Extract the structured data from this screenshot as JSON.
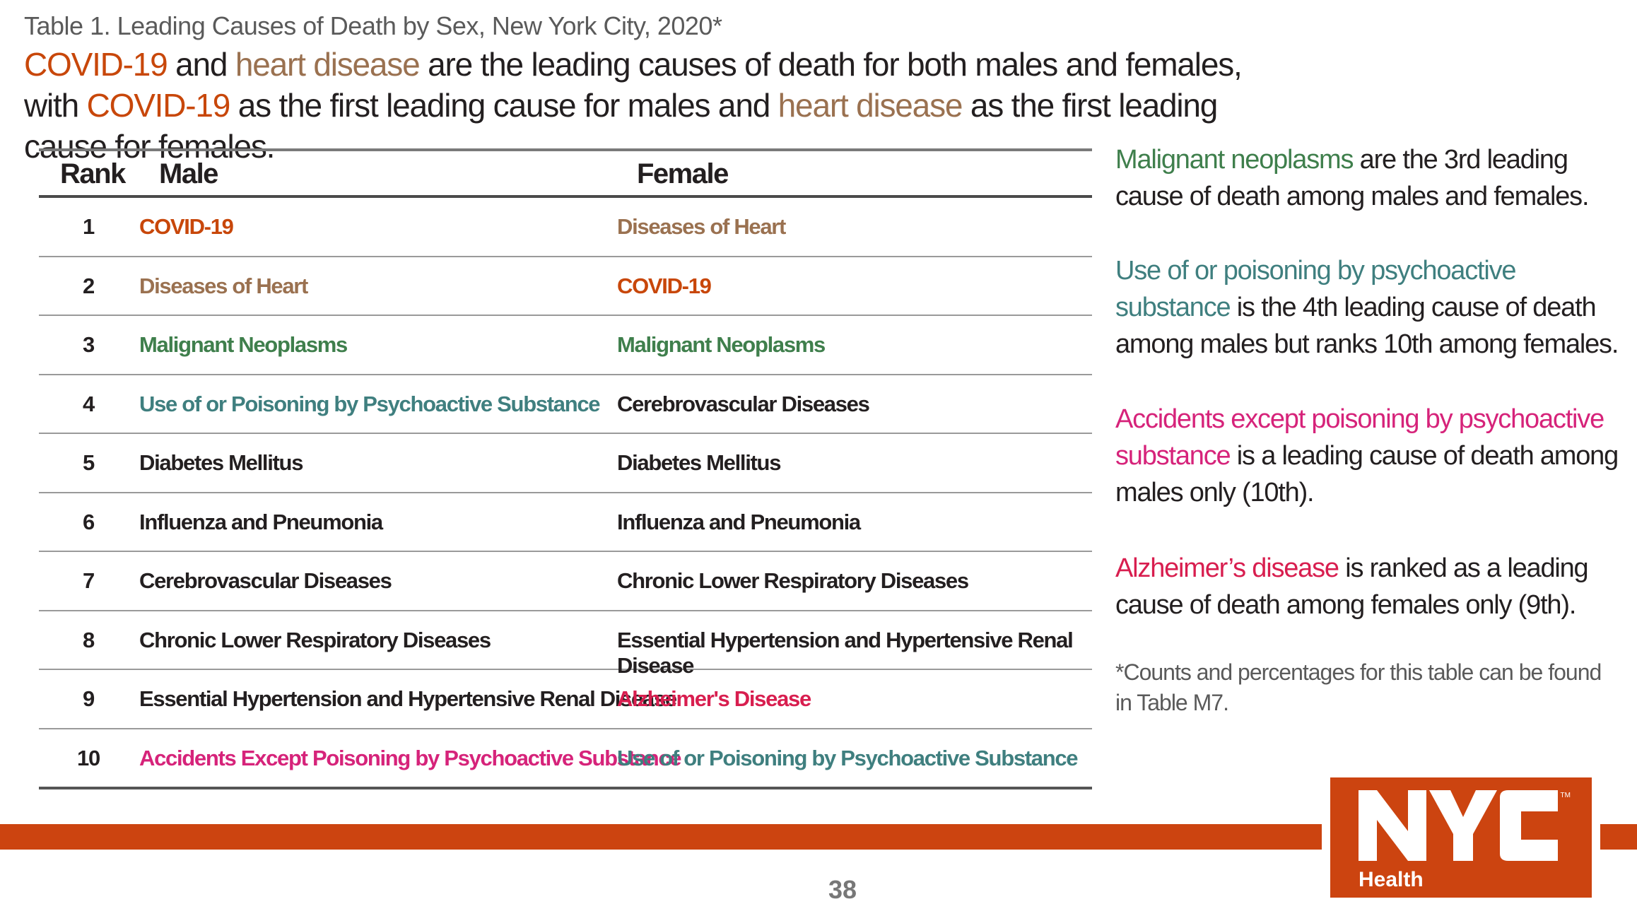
{
  "caption": "Table 1. Leading Causes of Death by Sex, New York City, 2020*",
  "headline": {
    "p1": "COVID-19",
    "p2": " and ",
    "p3": "heart disease",
    "p4": " are the leading causes of death for both males and females, with ",
    "p5": "COVID-19",
    "p6": " as the first leading cause for males and ",
    "p7": "heart disease",
    "p8": " as the first leading cause for females."
  },
  "table": {
    "headers": {
      "rank": "Rank",
      "male": "Male",
      "female": "Female"
    },
    "rows": [
      {
        "rank": "1",
        "male": "COVID-19",
        "female": "Diseases of Heart"
      },
      {
        "rank": "2",
        "male": "Diseases of Heart",
        "female": "COVID-19"
      },
      {
        "rank": "3",
        "male": "Malignant Neoplasms",
        "female": "Malignant Neoplasms"
      },
      {
        "rank": "4",
        "male": "Use of or Poisoning by Psychoactive Substance",
        "female": "Cerebrovascular Diseases"
      },
      {
        "rank": "5",
        "male": "Diabetes Mellitus",
        "female": "Diabetes Mellitus"
      },
      {
        "rank": "6",
        "male": "Influenza and Pneumonia",
        "female": "Influenza and Pneumonia"
      },
      {
        "rank": "7",
        "male": "Cerebrovascular Diseases",
        "female": "Chronic Lower Respiratory Diseases"
      },
      {
        "rank": "8",
        "male": "Chronic Lower Respiratory Diseases",
        "female": "Essential Hypertension and Hypertensive Renal Disease"
      },
      {
        "rank": "9",
        "male": "Essential Hypertension and Hypertensive Renal Disease",
        "female": "Alzheimer's Disease"
      },
      {
        "rank": "10",
        "male": "Accidents Except Poisoning by Psychoactive Substance",
        "female": "Use of or Poisoning by Psychoactive Substance"
      }
    ]
  },
  "colors": {
    "covid": "#c8470a",
    "heart": "#9a7150",
    "malignant": "#3f7f4c",
    "psychoactive": "#3f7f7f",
    "accidents": "#d6237a",
    "alzheimers": "#d81e4f",
    "brand_orange": "#cc4410"
  },
  "notes": {
    "malignant": {
      "highlight": "Malignant neoplasms",
      "rest": " are the 3rd leading cause of death among males and females."
    },
    "psychoactive": {
      "highlight": "Use of or poisoning by psychoactive substance",
      "rest": " is the 4th leading cause of death among males but ranks 10th among females."
    },
    "accidents": {
      "highlight": "Accidents except poisoning by psychoactive substance",
      "rest": " is a leading cause of death among males only (10th)."
    },
    "alzheimers": {
      "highlight": "Alzheimer’s disease",
      "rest": " is ranked as a leading cause of death among females only (9th)."
    },
    "footnote": "*Counts and percentages for this table can be found in Table M7."
  },
  "logo": {
    "text": "NYC",
    "sub": "Health",
    "tm": "TM",
    "icon": "nyc-health-logo"
  },
  "page_number": "38"
}
